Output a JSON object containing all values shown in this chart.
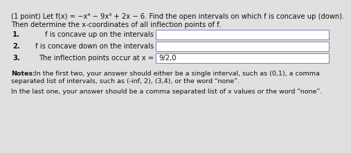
{
  "title_line1": "(1 point) Let f(x) = −x⁴ − 9x³ + 2x − 6. Find the open intervals on which f is concave up (down).",
  "title_line2": "Then determine the x-coordinates of all inflection points of f.",
  "item1_num": "1.",
  "item1_text": "f is concave up on the intervals",
  "item2_num": "2.",
  "item2_text": "f is concave down on the intervals",
  "item3_num": "3.",
  "item3_text": "The inflection points occur at x =",
  "item3_answer": "9/2,0",
  "notes_bold": "Notes:",
  "notes_rest": " In the first two, your answer should either be a single interval, such as (0,1), a comma",
  "notes_line2": "separated list of intervals, such as (-inf, 2), (3,4), or the word “none”.",
  "notes_line3": "In the last one, your answer should be a comma separated list of x values or the word “none”.",
  "bg_color": "#e0e0e0",
  "box_fill": "#ffffff",
  "box_border": "#8888bb",
  "font_size_title": 7.2,
  "font_size_items": 7.2,
  "font_size_notes": 6.8
}
